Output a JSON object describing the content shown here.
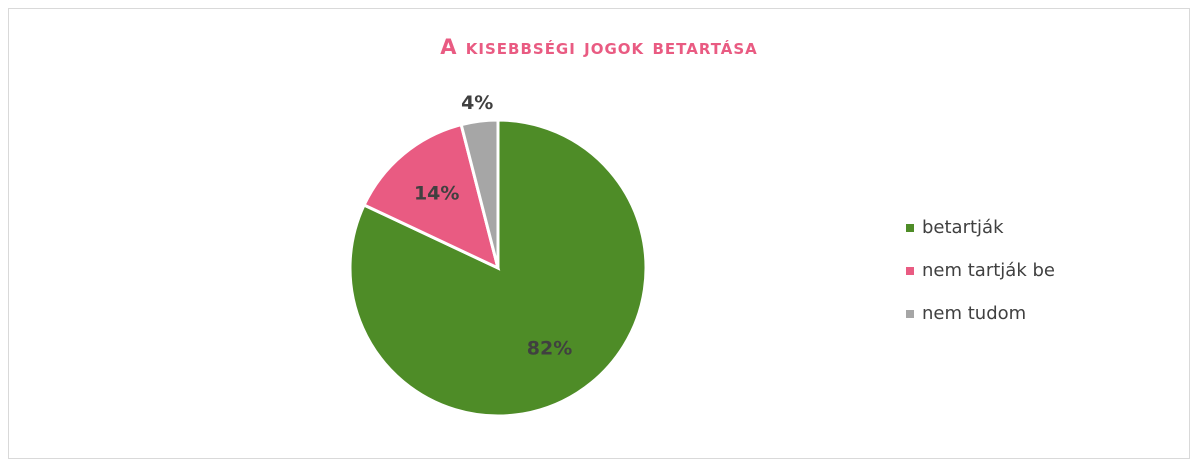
{
  "chart_data": {
    "type": "pie",
    "title": "A kisebbségi jogok betartása",
    "categories": [
      "betartják",
      "nem tartják be",
      "nem tudom"
    ],
    "values": [
      82,
      14,
      4
    ],
    "value_labels": [
      "82%",
      "14%",
      "4%"
    ],
    "colors": [
      "#4e8c27",
      "#e95b82",
      "#a6a6a6"
    ],
    "legend": "right"
  }
}
